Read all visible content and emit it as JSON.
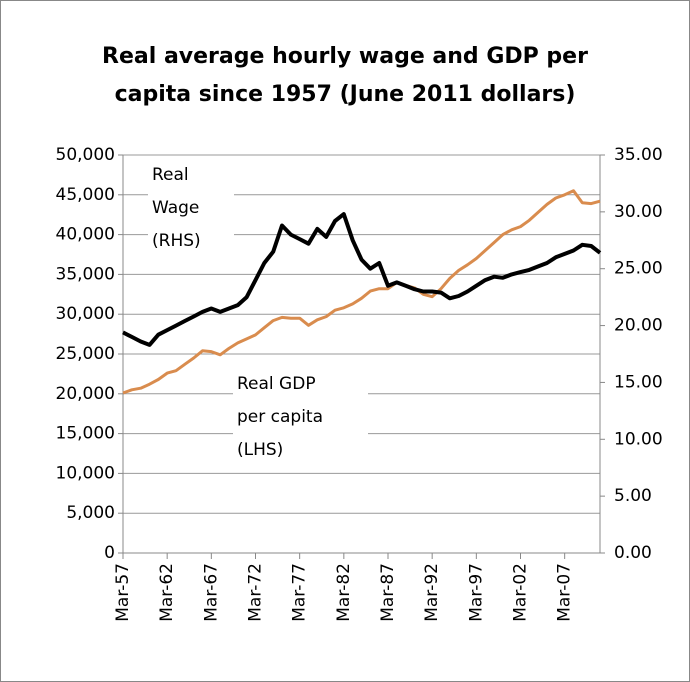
{
  "chart_data": {
    "type": "line",
    "title": [
      "Real average hourly wage and GDP per",
      "capita since 1957 (June 2011 dollars)"
    ],
    "annotations": [
      [
        "Real",
        "Wage",
        "(RHS)"
      ],
      [
        "Real GDP",
        "per capita",
        "(LHS)"
      ]
    ],
    "categories": [
      "Mar-57",
      null,
      null,
      null,
      null,
      "Mar-62",
      null,
      null,
      null,
      null,
      "Mar-67",
      null,
      null,
      null,
      null,
      "Mar-72",
      null,
      null,
      null,
      null,
      "Mar-77",
      null,
      null,
      null,
      null,
      "Mar-82",
      null,
      null,
      null,
      null,
      "Mar-87",
      null,
      null,
      null,
      null,
      "Mar-92",
      null,
      null,
      null,
      null,
      "Mar-97",
      null,
      null,
      null,
      null,
      "Mar-02",
      null,
      null,
      null,
      null,
      "Mar-07",
      null,
      null,
      null,
      null
    ],
    "series": [
      {
        "name": "Real GDP per capita",
        "color": "#d98c4e",
        "axis": "y",
        "values": [
          20100,
          20500,
          20700,
          21200,
          21800,
          22600,
          22900,
          23700,
          24500,
          25400,
          25300,
          24900,
          25700,
          26400,
          26900,
          27400,
          28300,
          29200,
          29600,
          29500,
          29500,
          28600,
          29300,
          29700,
          30500,
          30800,
          31300,
          32000,
          32900,
          33200,
          33200,
          34000,
          33600,
          33300,
          32500,
          32200,
          33200,
          34500,
          35500,
          36200,
          37000,
          38000,
          39000,
          40000,
          40600,
          41000,
          41800,
          42800,
          43800,
          44600,
          45000,
          45500,
          44000,
          43900,
          44200
        ]
      },
      {
        "name": "Real Wage",
        "color": "#000000",
        "axis": "y2",
        "values": [
          19.4,
          19.0,
          18.6,
          18.3,
          19.2,
          19.6,
          20.0,
          20.4,
          20.8,
          21.2,
          21.5,
          21.2,
          21.5,
          21.8,
          22.5,
          24.0,
          25.5,
          26.5,
          28.8,
          28.0,
          27.6,
          27.2,
          28.5,
          27.8,
          29.2,
          29.8,
          27.5,
          25.8,
          25.0,
          25.5,
          23.5,
          23.8,
          23.5,
          23.2,
          23.0,
          23.0,
          22.9,
          22.4,
          22.6,
          23.0,
          23.5,
          24.0,
          24.3,
          24.2,
          24.5,
          24.7,
          24.9,
          25.2,
          25.5,
          26.0,
          26.3,
          26.6,
          27.1,
          27.0,
          26.4
        ]
      }
    ],
    "ylim": [
      0,
      50000
    ],
    "yticks": [
      0,
      {
        "value": 5000,
        "label": "5,000"
      },
      {
        "value": 10000,
        "label": "10,000"
      },
      {
        "value": 15000,
        "label": "15,000"
      },
      {
        "value": 20000,
        "label": "20,000"
      },
      {
        "value": 25000,
        "label": "25,000"
      },
      {
        "value": 30000,
        "label": "30,000"
      },
      {
        "value": 35000,
        "label": "35,000"
      },
      {
        "value": 40000,
        "label": "40,000"
      },
      {
        "value": 45000,
        "label": "45,000"
      },
      {
        "value": 50000,
        "label": "50,000"
      }
    ],
    "y2lim": [
      0,
      35
    ],
    "y2ticks": [
      {
        "value": 0,
        "label": "0.00"
      },
      {
        "value": 5,
        "label": "5.00"
      },
      {
        "value": 10,
        "label": "10.00"
      },
      {
        "value": 15,
        "label": "15.00"
      },
      {
        "value": 20,
        "label": "20.00"
      },
      {
        "value": 25,
        "label": "25.00"
      },
      {
        "value": 30,
        "label": "30.00"
      },
      {
        "value": 35,
        "label": "35.00"
      }
    ],
    "grid": true
  }
}
